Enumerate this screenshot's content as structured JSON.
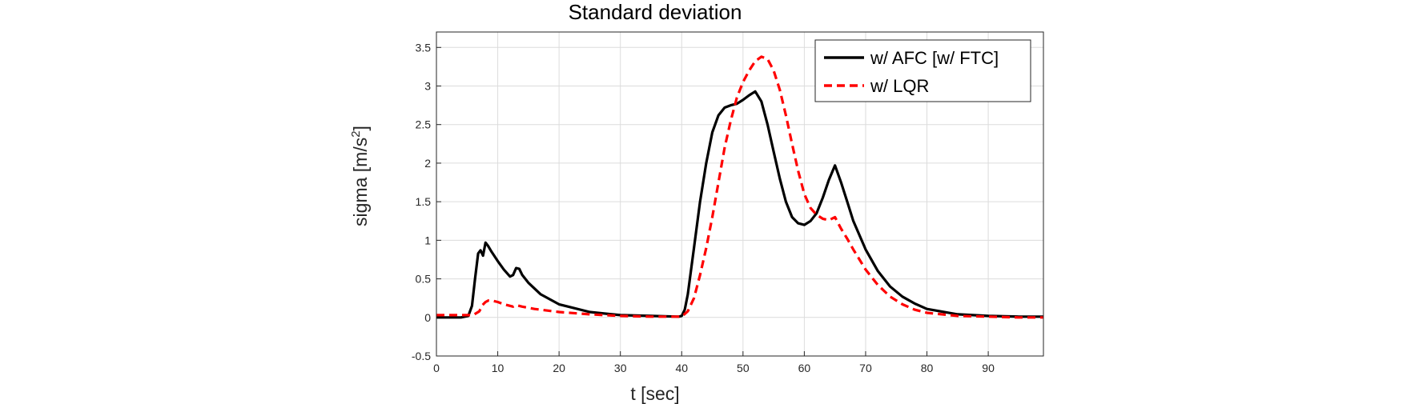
{
  "chart_data": {
    "type": "line",
    "title": "Standard deviation",
    "xlabel": "t [sec]",
    "ylabel": "sigma [m/s",
    "ylabel_sup": "2",
    "ylabel_end": "]",
    "xlim": [
      0,
      99
    ],
    "ylim": [
      -0.5,
      3.7
    ],
    "xticks": [
      "0",
      "10",
      "20",
      "30",
      "40",
      "50",
      "60",
      "70",
      "80",
      "90"
    ],
    "yticks": [
      "-0.5",
      "0",
      "0.5",
      "1",
      "1.5",
      "2",
      "2.5",
      "3",
      "3.5"
    ],
    "grid": true,
    "legend_position": "top-right",
    "colors": {
      "afc": "#000000",
      "lqr": "#ff0000"
    },
    "series": [
      {
        "name": "w/ AFC [w/ FTC]",
        "style": "solid",
        "x": [
          0,
          4,
          5.2,
          5.8,
          6.3,
          6.8,
          7.2,
          7.6,
          8,
          8.4,
          9,
          10,
          11,
          12,
          12.5,
          13,
          13.5,
          14,
          15,
          17,
          20,
          25,
          30,
          35,
          39.5,
          40,
          40.5,
          41,
          42,
          43,
          44,
          45,
          46,
          47,
          48,
          49,
          50,
          51,
          52,
          53,
          54,
          55,
          56,
          57,
          58,
          59,
          60,
          61,
          62,
          63,
          64,
          65,
          66,
          67,
          68,
          70,
          72,
          74,
          76,
          78,
          80,
          85,
          90,
          95,
          99
        ],
        "y": [
          0,
          0,
          0.02,
          0.15,
          0.5,
          0.83,
          0.87,
          0.8,
          0.97,
          0.93,
          0.85,
          0.73,
          0.62,
          0.53,
          0.55,
          0.64,
          0.63,
          0.55,
          0.45,
          0.3,
          0.17,
          0.07,
          0.03,
          0.02,
          0.01,
          0.02,
          0.1,
          0.3,
          0.9,
          1.5,
          2.0,
          2.4,
          2.62,
          2.72,
          2.75,
          2.77,
          2.82,
          2.88,
          2.93,
          2.8,
          2.5,
          2.15,
          1.8,
          1.5,
          1.3,
          1.22,
          1.2,
          1.25,
          1.35,
          1.55,
          1.78,
          1.97,
          1.75,
          1.5,
          1.25,
          0.88,
          0.6,
          0.4,
          0.27,
          0.18,
          0.11,
          0.04,
          0.02,
          0.01,
          0.01
        ]
      },
      {
        "name": "w/ LQR",
        "style": "dashed",
        "x": [
          0,
          6,
          7,
          7.5,
          8,
          8.5,
          9,
          10,
          11,
          12,
          12.5,
          13,
          14,
          16,
          20,
          25,
          30,
          35,
          40,
          41,
          42,
          43,
          44,
          45,
          46,
          47,
          48,
          49,
          50,
          51,
          52,
          53,
          54,
          55,
          56,
          57,
          58,
          59,
          60,
          61,
          62,
          63,
          64,
          65,
          66,
          67,
          68,
          70,
          72,
          74,
          76,
          78,
          80,
          85,
          90,
          95,
          99
        ],
        "y": [
          0.03,
          0.03,
          0.08,
          0.16,
          0.2,
          0.22,
          0.22,
          0.2,
          0.17,
          0.15,
          0.14,
          0.16,
          0.14,
          0.11,
          0.07,
          0.04,
          0.02,
          0.01,
          0.01,
          0.08,
          0.25,
          0.55,
          0.9,
          1.3,
          1.75,
          2.2,
          2.55,
          2.85,
          3.05,
          3.2,
          3.32,
          3.38,
          3.35,
          3.2,
          2.95,
          2.62,
          2.25,
          1.9,
          1.6,
          1.42,
          1.33,
          1.28,
          1.26,
          1.3,
          1.15,
          1.02,
          0.88,
          0.62,
          0.42,
          0.27,
          0.17,
          0.1,
          0.06,
          0.02,
          0.01,
          0.0,
          0.0
        ]
      }
    ]
  }
}
